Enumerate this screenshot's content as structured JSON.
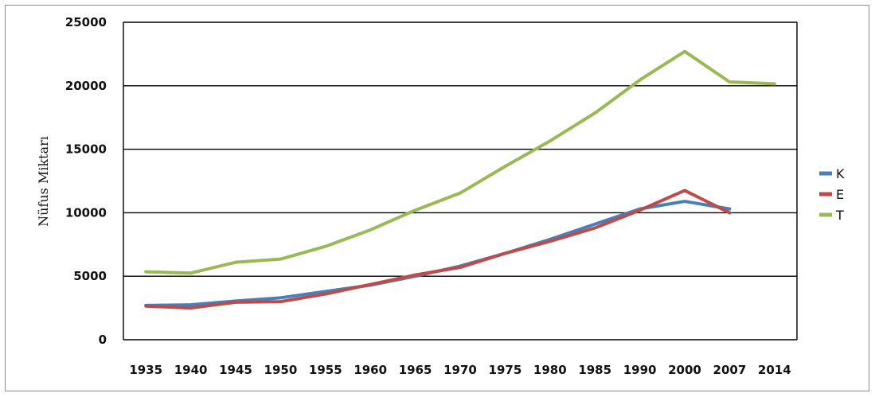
{
  "chart_data": {
    "type": "line",
    "title": "",
    "xlabel": "",
    "ylabel": "Nüfus Miktarı",
    "categories": [
      "1935",
      "1940",
      "1945",
      "1950",
      "1955",
      "1960",
      "1965",
      "1970",
      "1975",
      "1980",
      "1985",
      "1990",
      "2000",
      "2007",
      "2014"
    ],
    "ylim": [
      0,
      25000
    ],
    "yticks": [
      "0",
      "5000",
      "10000",
      "15000",
      "20000",
      "25000"
    ],
    "grid": true,
    "legend_position": "right",
    "series": [
      {
        "name": "K",
        "color": "#4a7ebb",
        "values": [
          2700,
          2750,
          3050,
          3300,
          3800,
          4300,
          5000,
          5800,
          6800,
          7900,
          9100,
          10300,
          10900,
          10300,
          null
        ]
      },
      {
        "name": "E",
        "color": "#be4b48",
        "values": [
          2650,
          2500,
          2950,
          3000,
          3600,
          4350,
          5100,
          5700,
          6800,
          7750,
          8800,
          10200,
          11750,
          10000,
          null
        ]
      },
      {
        "name": "T",
        "color": "#98b954",
        "values": [
          5350,
          5250,
          6100,
          6350,
          7350,
          8650,
          10200,
          11550,
          13650,
          15650,
          17850,
          20450,
          22700,
          20300,
          20150
        ]
      }
    ]
  }
}
